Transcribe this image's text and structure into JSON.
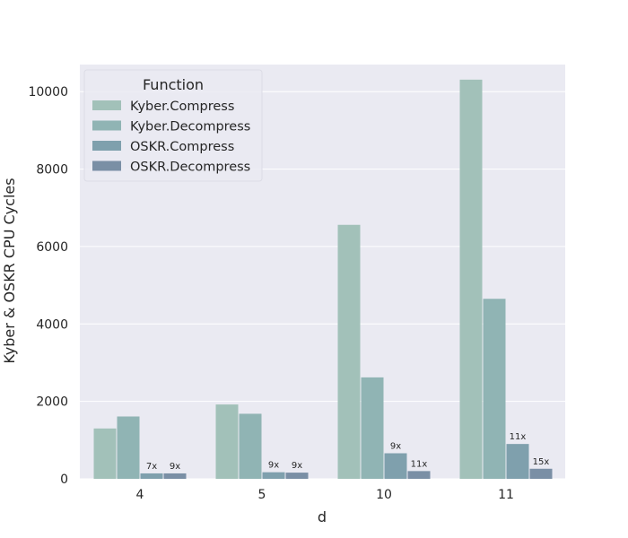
{
  "chart_data": {
    "type": "bar",
    "categories": [
      "4",
      "5",
      "10",
      "11"
    ],
    "series": [
      {
        "name": "Kyber.Compress",
        "values": [
          1300,
          1920,
          6560,
          10310
        ],
        "ratios": [
          "",
          "",
          "",
          ""
        ],
        "color": "#a2c1b9"
      },
      {
        "name": "Kyber.Decompress",
        "values": [
          1610,
          1680,
          2620,
          4650
        ],
        "ratios": [
          "",
          "",
          "",
          ""
        ],
        "color": "#90b4b4"
      },
      {
        "name": "OSKR.Compress",
        "values": [
          140,
          170,
          660,
          900
        ],
        "ratios": [
          "7x",
          "9x",
          "9x",
          "11x"
        ],
        "color": "#7fa0ad"
      },
      {
        "name": "OSKR.Decompress",
        "values": [
          140,
          160,
          200,
          260
        ],
        "ratios": [
          "9x",
          "9x",
          "11x",
          "15x"
        ],
        "color": "#7a8fa5"
      }
    ],
    "xlabel": "d",
    "ylabel": "Kyber & OSKR CPU Cycles",
    "ylim": [
      0,
      10700
    ],
    "yticks": [
      "0",
      "2000",
      "4000",
      "6000",
      "8000",
      "10000"
    ],
    "ytick_values": [
      0,
      2000,
      4000,
      6000,
      8000,
      10000
    ],
    "legend": {
      "title": "Function",
      "placement": "top-left"
    },
    "grid": true,
    "background": "#eaeaf2"
  }
}
